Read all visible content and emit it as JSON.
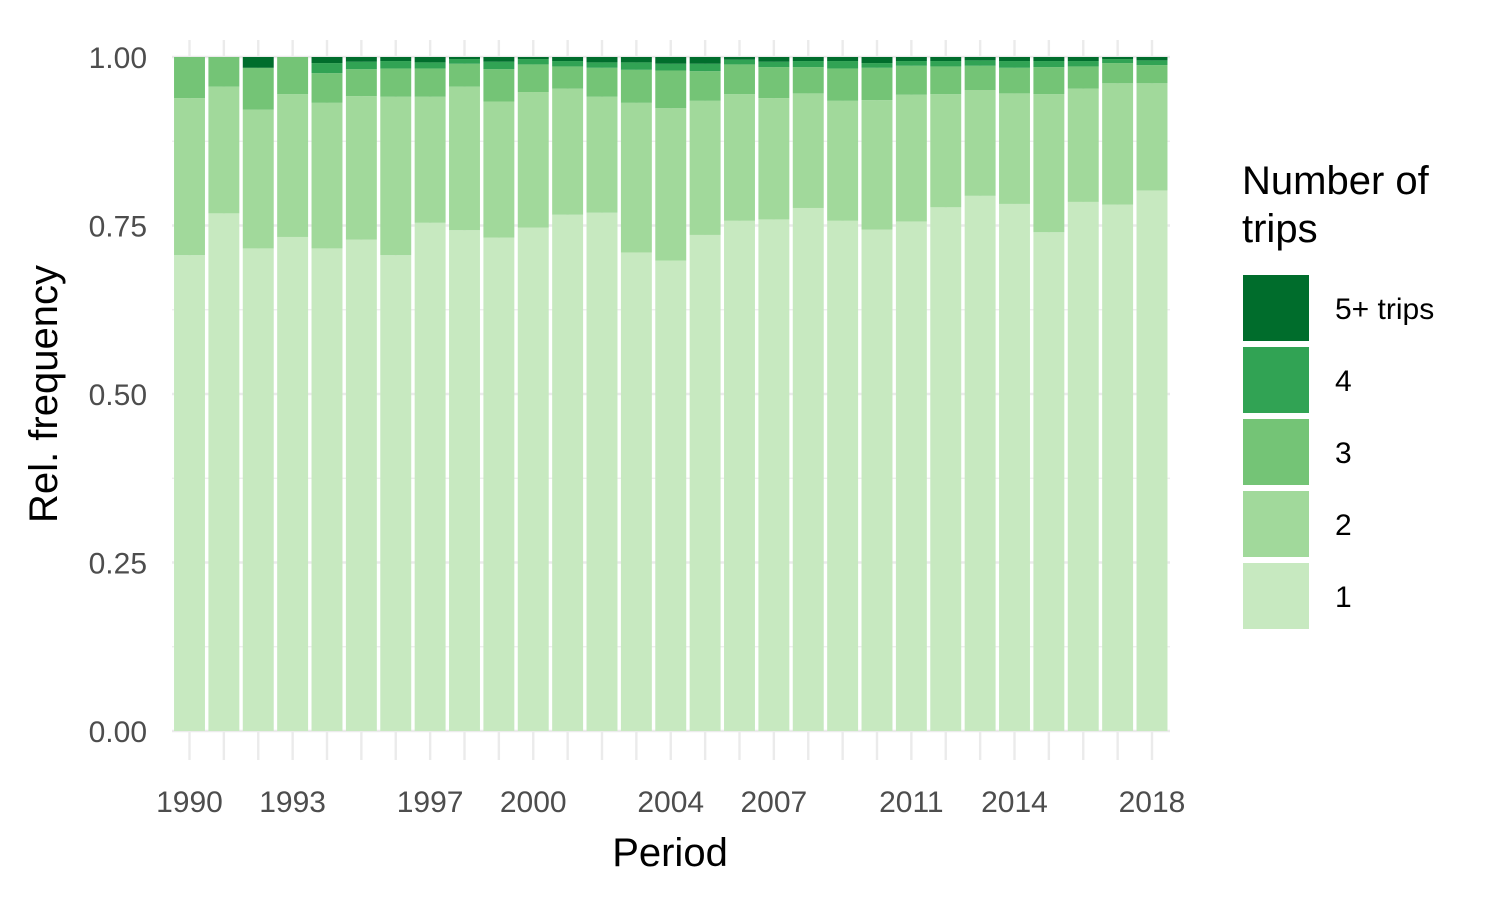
{
  "chart_data": {
    "type": "bar",
    "stacked": true,
    "xlabel": "Period",
    "ylabel": "Rel. frequency",
    "ylim": [
      0,
      1
    ],
    "y_ticks": [
      "0.00",
      "0.25",
      "0.50",
      "0.75",
      "1.00"
    ],
    "grid": true,
    "legend_position": "right",
    "legend_title": "Number of trips",
    "legend": [
      {
        "name": "5+ trips",
        "color": "#006d2c"
      },
      {
        "name": "4",
        "color": "#31a354"
      },
      {
        "name": "3",
        "color": "#74c476"
      },
      {
        "name": "2",
        "color": "#a1d99b"
      },
      {
        "name": "1",
        "color": "#c7e9c0"
      }
    ],
    "x": [
      1990,
      1991,
      1992,
      1993,
      1994,
      1995,
      1996,
      1997,
      1998,
      1999,
      2000,
      2001,
      2002,
      2003,
      2004,
      2005,
      2006,
      2007,
      2008,
      2009,
      2010,
      2011,
      2012,
      2013,
      2014,
      2015,
      2016,
      2017,
      2018
    ],
    "x_tick_labels": [
      "1990",
      "1993",
      "1997",
      "2000",
      "2004",
      "2007",
      "2011",
      "2014",
      "2018"
    ],
    "series": [
      {
        "name": "1",
        "color": "#c7e9c0",
        "values": [
          0.706,
          0.768,
          0.716,
          0.733,
          0.716,
          0.729,
          0.706,
          0.754,
          0.743,
          0.732,
          0.747,
          0.766,
          0.769,
          0.71,
          0.698,
          0.736,
          0.757,
          0.759,
          0.776,
          0.757,
          0.744,
          0.756,
          0.777,
          0.794,
          0.782,
          0.74,
          0.785,
          0.781,
          0.802
        ]
      },
      {
        "name": "2",
        "color": "#a1d99b",
        "values": [
          0.233,
          0.188,
          0.206,
          0.212,
          0.216,
          0.213,
          0.235,
          0.187,
          0.213,
          0.202,
          0.201,
          0.187,
          0.172,
          0.222,
          0.226,
          0.199,
          0.188,
          0.18,
          0.17,
          0.178,
          0.192,
          0.188,
          0.168,
          0.157,
          0.164,
          0.205,
          0.168,
          0.18,
          0.159
        ]
      },
      {
        "name": "3",
        "color": "#74c476",
        "values": [
          0.061,
          0.044,
          0.062,
          0.055,
          0.044,
          0.04,
          0.042,
          0.042,
          0.034,
          0.048,
          0.041,
          0.033,
          0.043,
          0.049,
          0.056,
          0.044,
          0.044,
          0.046,
          0.039,
          0.048,
          0.048,
          0.043,
          0.041,
          0.036,
          0.038,
          0.04,
          0.033,
          0.03,
          0.027
        ]
      },
      {
        "name": "4",
        "color": "#31a354",
        "values": [
          0,
          0,
          0,
          0,
          0.015,
          0.011,
          0.011,
          0.009,
          0.007,
          0.011,
          0.008,
          0.008,
          0.008,
          0.011,
          0.01,
          0.011,
          0.007,
          0.008,
          0.009,
          0.011,
          0.007,
          0.007,
          0.008,
          0.008,
          0.01,
          0.009,
          0.008,
          0.006,
          0.007
        ]
      },
      {
        "name": "5+ trips",
        "color": "#006d2c",
        "values": [
          0,
          0,
          0.016,
          0,
          0.009,
          0.007,
          0.006,
          0.008,
          0.003,
          0.007,
          0.003,
          0.006,
          0.008,
          0.008,
          0.01,
          0.01,
          0.004,
          0.007,
          0.006,
          0.006,
          0.009,
          0.006,
          0.006,
          0.005,
          0.006,
          0.006,
          0.006,
          0.003,
          0.005
        ]
      }
    ]
  }
}
